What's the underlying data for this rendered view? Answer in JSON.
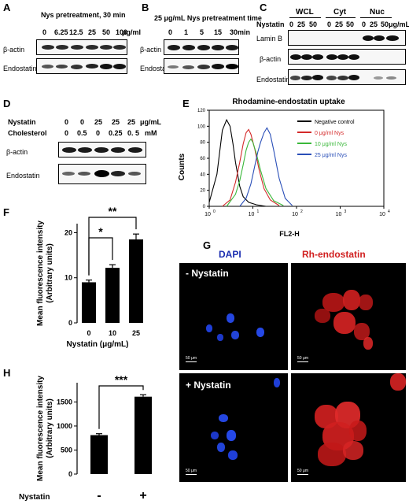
{
  "panels": {
    "A": {
      "letter": "A",
      "title": "Nys pretreatment, 30 min",
      "concs": [
        "0",
        "6.25",
        "12.5",
        "25",
        "50",
        "100"
      ],
      "unit": "μg/ml",
      "rows": [
        "β-actin",
        "Endostatin"
      ]
    },
    "B": {
      "letter": "B",
      "title": "25 μg/mL Nys pretreatment time",
      "times": [
        "0",
        "1",
        "5",
        "15",
        "30"
      ],
      "unit": "min",
      "rows": [
        "β-actin",
        "Endostatin"
      ]
    },
    "C": {
      "letter": "C",
      "row_header": "Nystatin",
      "groups": [
        "WCL",
        "Cyt",
        "Nuc"
      ],
      "concs": [
        "0",
        "25",
        "50"
      ],
      "unit": "μg/mL",
      "rows": [
        "Lamin B",
        "β-actin",
        "Endostatin"
      ]
    },
    "D": {
      "letter": "D",
      "nystatin_label": "Nystatin",
      "nystatin_values": [
        "0",
        "0",
        "25",
        "25",
        "25"
      ],
      "nystatin_unit": "μg/mL",
      "cholesterol_label": "Cholesterol",
      "cholesterol_values": [
        "0",
        "0.5",
        "0",
        "0.25",
        "0. 5"
      ],
      "cholesterol_unit": "mM",
      "rows": [
        "β-actin",
        "Endostatin"
      ]
    },
    "E": {
      "letter": "E",
      "title": "Rhodamine-endostatin uptake",
      "ylabel": "Counts",
      "xlabel": "FL2-H",
      "y_ticks": [
        "0",
        "20",
        "40",
        "60",
        "80",
        "100",
        "120"
      ],
      "x_ticks": [
        "10",
        "10",
        "10",
        "10",
        "10"
      ],
      "x_exps": [
        "0",
        "1",
        "2",
        "3",
        "4"
      ],
      "legend": [
        {
          "label": "Negative control",
          "color": "#000000"
        },
        {
          "label": "0 μg/ml Nys",
          "color": "#d42a2a"
        },
        {
          "label": "10 μg/ml Nys",
          "color": "#3ab83a"
        },
        {
          "label": "25 μg/ml Nys",
          "color": "#2a4fb8"
        }
      ]
    },
    "F": {
      "letter": "F"
    },
    "G": {
      "letter": "G",
      "col_dapi": "DAPI",
      "col_rh": "Rh-endostatin",
      "row_minus": "- Nystatin",
      "row_plus": "+ Nystatin",
      "scale": "50 μm"
    },
    "H": {
      "letter": "H"
    }
  },
  "chart_data": [
    {
      "type": "line",
      "panel": "E",
      "title": "Rhodamine-endostatin uptake",
      "xlabel": "FL2-H",
      "ylabel": "Counts",
      "xscale": "log",
      "xlim": [
        1,
        10000
      ],
      "ylim": [
        0,
        120
      ],
      "series": [
        {
          "name": "Negative control",
          "color": "#000000",
          "x": [
            1,
            1.5,
            2,
            2.5,
            3,
            3.5,
            4,
            5,
            6,
            8,
            12,
            20
          ],
          "y": [
            5,
            40,
            95,
            108,
            100,
            78,
            55,
            25,
            12,
            5,
            2,
            0
          ]
        },
        {
          "name": "0 μg/ml Nys",
          "color": "#d42a2a",
          "x": [
            2,
            3,
            4,
            5,
            6,
            7,
            8,
            9,
            11,
            14,
            18,
            25,
            40
          ],
          "y": [
            0,
            8,
            30,
            55,
            78,
            92,
            96,
            90,
            72,
            45,
            22,
            8,
            1
          ]
        },
        {
          "name": "10 μg/ml Nys",
          "color": "#3ab83a",
          "x": [
            2.5,
            4,
            5,
            6,
            7,
            8,
            9,
            10,
            12,
            15,
            20,
            30,
            50
          ],
          "y": [
            0,
            15,
            32,
            52,
            70,
            80,
            84,
            80,
            66,
            45,
            22,
            7,
            1
          ]
        },
        {
          "name": "25 μg/ml Nys",
          "color": "#2a4fb8",
          "x": [
            5,
            7,
            9,
            11,
            13,
            15,
            18,
            21,
            25,
            30,
            40,
            55,
            80
          ],
          "y": [
            0,
            10,
            28,
            50,
            68,
            80,
            92,
            98,
            90,
            70,
            35,
            10,
            1
          ]
        }
      ],
      "legend_position": "top-right"
    },
    {
      "type": "bar",
      "panel": "F",
      "categories": [
        "0",
        "10",
        "25"
      ],
      "values": [
        9,
        12.2,
        18.5
      ],
      "errors": [
        0.5,
        0.7,
        1.2
      ],
      "xlabel": "Nystatin (μg/mL)",
      "ylabel": "Mean fluorescence intensity (Arbitrary units)",
      "yticks": [
        0,
        10,
        20
      ],
      "ylim": [
        0,
        22
      ],
      "significance": [
        {
          "from": "0",
          "to": "10",
          "label": "*"
        },
        {
          "from": "0",
          "to": "25",
          "label": "**"
        }
      ]
    },
    {
      "type": "bar",
      "panel": "H",
      "categories": [
        "-",
        "+"
      ],
      "values": [
        810,
        1610
      ],
      "errors": [
        30,
        40
      ],
      "xlabel": "Nystatin",
      "ylabel": "Mean fluorescence intensity (Arbitrary units)",
      "yticks": [
        0,
        500,
        1000,
        1500
      ],
      "ylim": [
        0,
        1900
      ],
      "significance": [
        {
          "from": "-",
          "to": "+",
          "label": "***"
        }
      ]
    }
  ]
}
